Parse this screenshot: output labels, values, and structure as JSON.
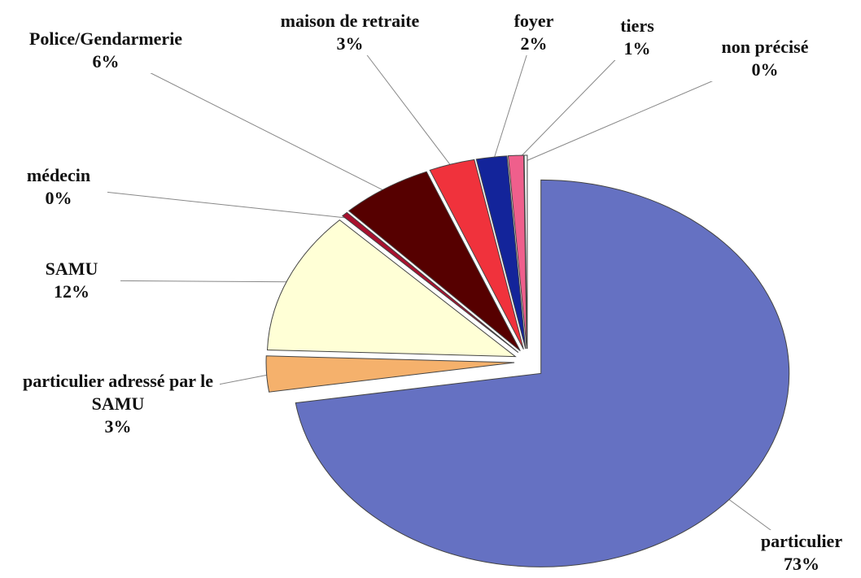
{
  "chart_data": {
    "type": "pie",
    "categories": [
      "particulier",
      "particulier adressé par le SAMU",
      "SAMU",
      "médecin",
      "Police/Gendarmerie",
      "maison de retraite",
      "foyer",
      "tiers",
      "non précisé"
    ],
    "values": [
      73,
      3,
      12,
      0.4,
      6,
      3,
      2,
      1,
      0.2
    ],
    "value_labels": [
      "73%",
      "3%",
      "12%",
      "0%",
      "6%",
      "3%",
      "2%",
      "1%",
      "0%"
    ],
    "colors": [
      "#6571c2",
      "#f5b16c",
      "#ffffd6",
      "#a8102e",
      "#560000",
      "#f0323c",
      "#13249a",
      "#ef5f8c",
      "#ffffff"
    ]
  }
}
